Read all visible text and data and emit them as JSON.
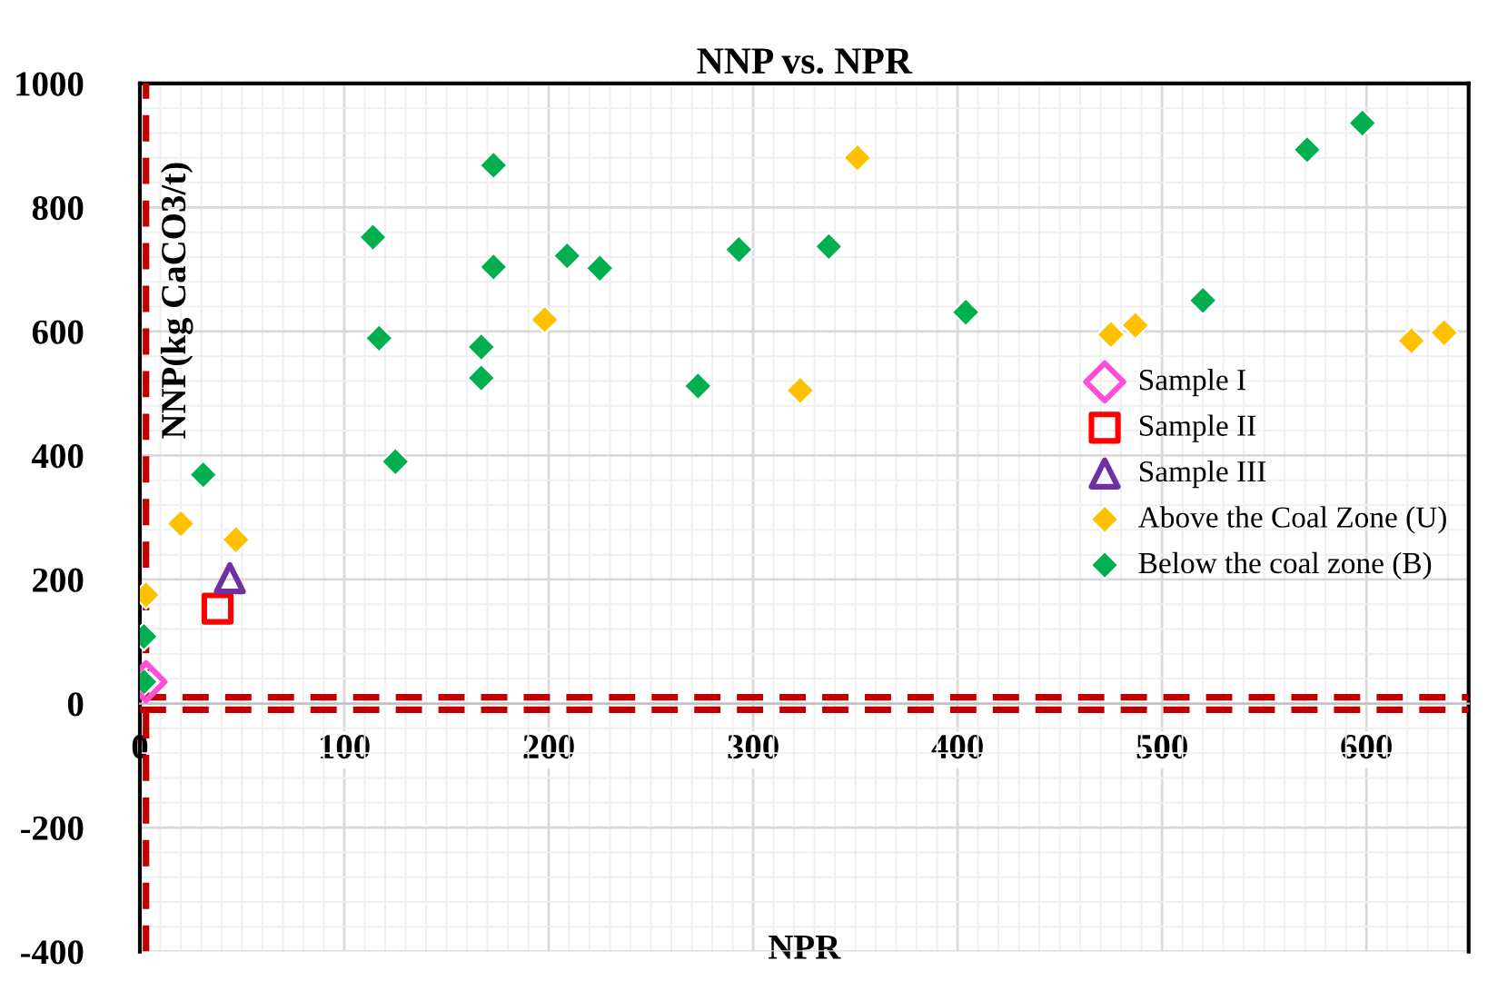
{
  "chart_data": {
    "type": "scatter",
    "title": "NNP vs. NPR",
    "xlabel": "NPR",
    "ylabel": "NNP(kg CaCO3/t)",
    "xlim": [
      0,
      650
    ],
    "xticks": [
      0,
      100,
      200,
      300,
      400,
      500,
      600
    ],
    "ylim": [
      -400,
      1000
    ],
    "yticks": [
      -400,
      -200,
      0,
      200,
      400,
      600,
      800,
      1000
    ],
    "grid": true,
    "legend": "right",
    "ref_lines": [
      {
        "axis": "x",
        "value": 3,
        "color": "#c00000",
        "line_style": "dashed"
      },
      {
        "axis": "y",
        "value": 10,
        "color": "#c00000",
        "line_style": "dashed"
      },
      {
        "axis": "y",
        "value": -10,
        "color": "#c00000",
        "line_style": "dashed"
      }
    ],
    "series": [
      {
        "name": "Sample I",
        "color": "#ff4fd8",
        "marker": "diamond",
        "x": [
          3
        ],
        "values": [
          35
        ]
      },
      {
        "name": "Sample II",
        "color": "#ff0000",
        "marker": "square",
        "x": [
          38
        ],
        "values": [
          153
        ]
      },
      {
        "name": "Sample III",
        "color": "#7030a0",
        "marker": "triangle",
        "x": [
          44
        ],
        "values": [
          202
        ]
      },
      {
        "name": "Above the Coal Zone (U)",
        "color": "#ffc000",
        "marker": "diamond",
        "x": [
          3,
          20,
          47,
          198,
          323,
          351,
          475,
          487,
          622,
          638
        ],
        "values": [
          175,
          290,
          264,
          619,
          505,
          880,
          595,
          610,
          585,
          598
        ]
      },
      {
        "name": "Below the coal zone (B)",
        "color": "#00b050",
        "marker": "diamond",
        "x": [
          2,
          2,
          31,
          114,
          117,
          125,
          167,
          167,
          173,
          173,
          209,
          225,
          273,
          293,
          337,
          404,
          520,
          571,
          598
        ],
        "values": [
          108,
          35,
          369,
          752,
          589,
          390,
          575,
          525,
          704,
          868,
          722,
          702,
          512,
          732,
          737,
          631,
          650,
          893,
          936
        ]
      }
    ]
  }
}
